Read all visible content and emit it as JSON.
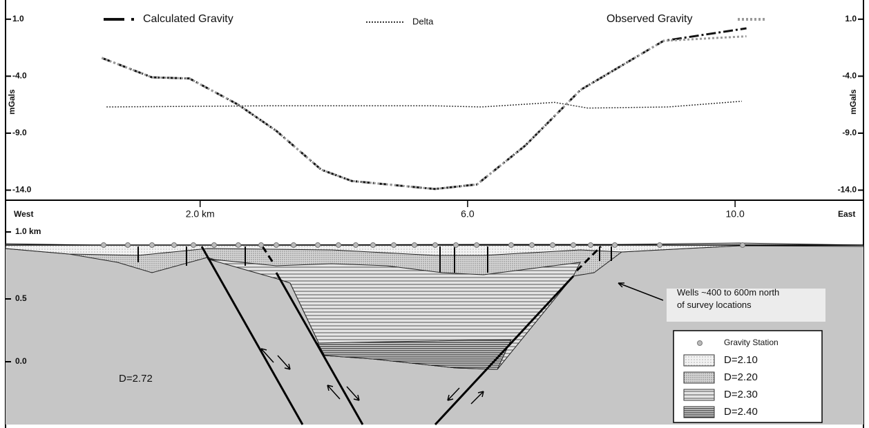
{
  "chart_data": {
    "type": "line",
    "ylabel": "mGals",
    "y2label": "mGals",
    "xlim": [
      -0.91,
      11.92
    ],
    "ylim": [
      -14.7,
      2.2
    ],
    "y2lim": [
      -14.7,
      2.2
    ],
    "xticks": [
      {
        "value": 2.0,
        "label": "2.0 km"
      },
      {
        "value": 6.0,
        "label": "6.0"
      },
      {
        "value": 10.0,
        "label": "10.0"
      }
    ],
    "yticks": [
      {
        "value": 1.0,
        "label": "1.0"
      },
      {
        "value": -4.0,
        "label": "-4.0"
      },
      {
        "value": -9.0,
        "label": "-9.0"
      },
      {
        "value": -14.0,
        "label": "-14.0"
      }
    ],
    "y2ticks": [
      {
        "value": 1.0,
        "label": "1.0"
      },
      {
        "value": -4.0,
        "label": "-4.0"
      },
      {
        "value": -9.0,
        "label": "-9.0"
      },
      {
        "value": -14.0,
        "label": "-14.0"
      }
    ],
    "series": [
      {
        "name": "Calculated Gravity",
        "color": "#111111",
        "x": [
          0.53,
          1.28,
          1.84,
          2.57,
          3.14,
          3.81,
          4.27,
          5.51,
          6.14,
          6.86,
          7.69,
          8.93,
          10.17
        ],
        "values": [
          -2.4,
          -4.1,
          -4.2,
          -6.5,
          -8.8,
          -12.2,
          -13.2,
          -13.9,
          -13.5,
          -10.1,
          -5.2,
          -0.9,
          0.2
        ]
      },
      {
        "name": "Delta",
        "color": "#333333",
        "x": [
          0.6,
          3.0,
          5.5,
          6.2,
          7.3,
          7.8,
          9.0,
          10.1
        ],
        "values": [
          -6.7,
          -6.6,
          -6.6,
          -6.7,
          -6.3,
          -6.8,
          -6.7,
          -6.2
        ]
      },
      {
        "name": "Observed Gravity",
        "color": "#9a9a9a",
        "x": [
          0.53,
          1.28,
          1.84,
          2.57,
          3.14,
          3.81,
          4.27,
          5.51,
          6.14,
          6.86,
          7.69,
          8.93,
          10.17
        ],
        "values": [
          -2.4,
          -4.1,
          -4.2,
          -6.5,
          -8.8,
          -12.2,
          -13.2,
          -13.9,
          -13.5,
          -10.1,
          -5.2,
          -0.9,
          -0.5
        ]
      }
    ]
  },
  "cross_section": {
    "west": "West",
    "east": "East",
    "depth_labels": [
      "1.0 km",
      "0.5",
      "0.0"
    ],
    "basement": "D=2.72",
    "annotation": "Wells ~400 to 600m north of survey locations",
    "legend": [
      "Gravity Station",
      "D=2.10",
      "D=2.20",
      "D=2.30",
      "D=2.40"
    ]
  }
}
